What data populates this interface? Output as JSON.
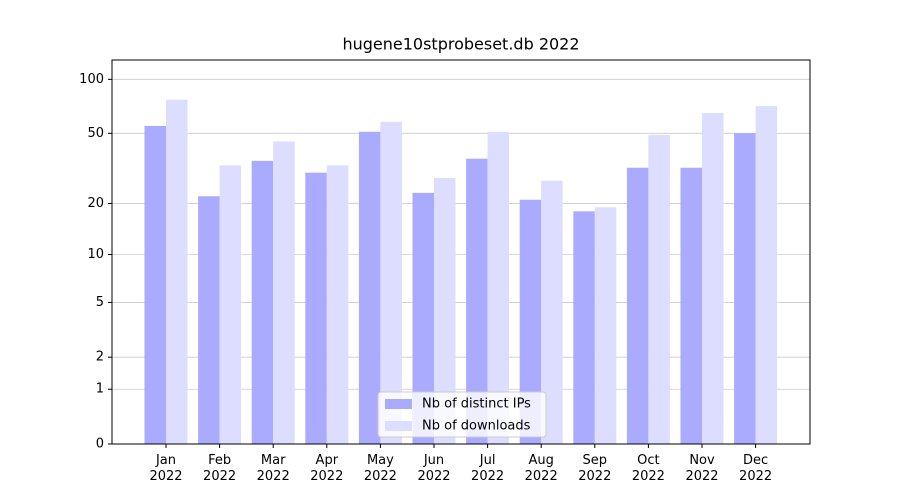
{
  "chart_data": {
    "type": "bar",
    "title": "hugene10stprobeset.db 2022",
    "categories": [
      "Jan\n2022",
      "Feb\n2022",
      "Mar\n2022",
      "Apr\n2022",
      "May\n2022",
      "Jun\n2022",
      "Jul\n2022",
      "Aug\n2022",
      "Sep\n2022",
      "Oct\n2022",
      "Nov\n2022",
      "Dec\n2022"
    ],
    "series": [
      {
        "name": "Nb of distinct IPs",
        "color": "#aaaaff",
        "values": [
          55,
          22,
          35,
          30,
          51,
          23,
          36,
          21,
          18,
          32,
          32,
          50
        ]
      },
      {
        "name": "Nb of downloads",
        "color": "#ddddff",
        "values": [
          77,
          33,
          45,
          33,
          58,
          28,
          51,
          27,
          19,
          49,
          65,
          71
        ]
      }
    ],
    "yscale": "log1p",
    "ylim": [
      0,
      128
    ],
    "yticks": [
      0,
      1,
      2,
      5,
      10,
      20,
      50,
      100
    ],
    "grid": true,
    "legend": "lower center"
  }
}
